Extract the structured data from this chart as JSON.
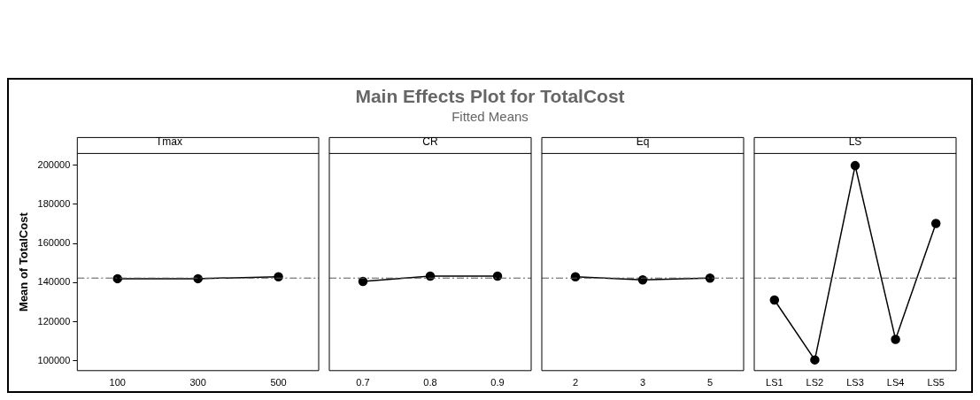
{
  "chart_data": [
    {
      "type": "line",
      "title": "Tmax",
      "ylabel": "Mean of TotalCost",
      "annotations": [
        "Main Effects Plot for TotalCost",
        "Fitted Means"
      ],
      "categories": [
        "100",
        "300",
        "500"
      ],
      "values": [
        142000,
        142000,
        143000
      ],
      "color": "#000000",
      "marker": "circle",
      "line_style": "solid",
      "ylim": [
        95000,
        206000
      ],
      "yticks": [
        100000,
        120000,
        140000,
        160000,
        180000,
        200000
      ],
      "grid": false,
      "legend": false,
      "ref_lines": [
        {
          "axis": "y",
          "value": 142300,
          "label": null,
          "color": "#555555",
          "line_style": "dashed"
        }
      ]
    },
    {
      "type": "line",
      "title": "CR",
      "categories": [
        "0.7",
        "0.8",
        "0.9"
      ],
      "values": [
        140600,
        143300,
        143300
      ],
      "color": "#000000",
      "marker": "circle",
      "line_style": "solid",
      "ylim": [
        95000,
        206000
      ],
      "tick_labels": "x",
      "grid": false,
      "legend": false,
      "ref_lines": [
        {
          "axis": "y",
          "value": 142300,
          "label": null,
          "color": "#555555",
          "line_style": "dashed"
        }
      ]
    },
    {
      "type": "line",
      "title": "Eq",
      "categories": [
        "2",
        "3",
        "5"
      ],
      "values": [
        143000,
        141400,
        142300
      ],
      "color": "#000000",
      "marker": "circle",
      "line_style": "solid",
      "ylim": [
        95000,
        206000
      ],
      "tick_labels": "x",
      "grid": false,
      "legend": false,
      "ref_lines": [
        {
          "axis": "y",
          "value": 142300,
          "label": null,
          "color": "#555555",
          "line_style": "dashed"
        }
      ]
    },
    {
      "type": "line",
      "title": "LS",
      "categories": [
        "LS1",
        "LS2",
        "LS3",
        "LS4",
        "LS5"
      ],
      "values": [
        131100,
        100500,
        199800,
        111000,
        170200
      ],
      "color": "#000000",
      "marker": "circle",
      "line_style": "solid",
      "ylim": [
        95000,
        206000
      ],
      "tick_labels": "x",
      "grid": false,
      "legend": false,
      "ref_lines": [
        {
          "axis": "y",
          "value": 142300,
          "label": null,
          "color": "#555555",
          "line_style": "dashed"
        }
      ]
    }
  ]
}
